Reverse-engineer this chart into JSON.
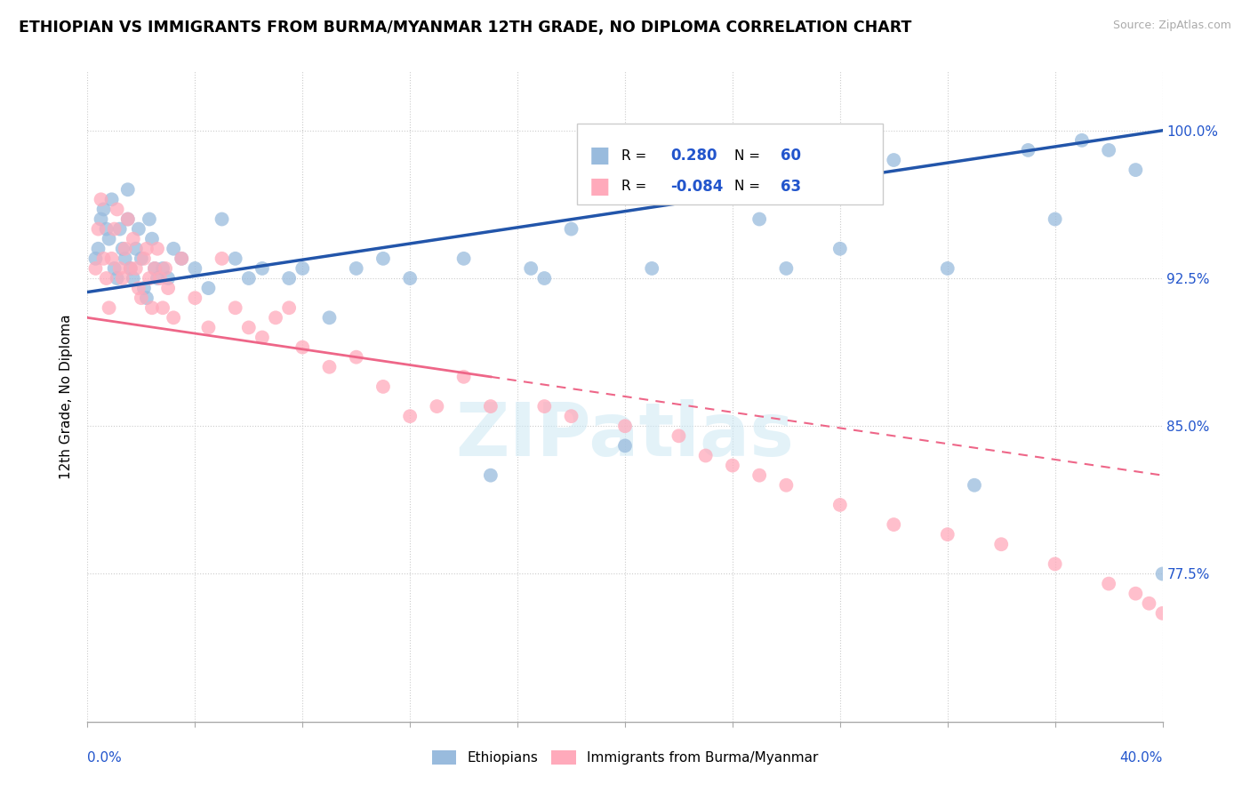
{
  "title": "ETHIOPIAN VS IMMIGRANTS FROM BURMA/MYANMAR 12TH GRADE, NO DIPLOMA CORRELATION CHART",
  "source": "Source: ZipAtlas.com",
  "ylabel": "12th Grade, No Diploma",
  "yticks": [
    77.5,
    85.0,
    92.5,
    100.0
  ],
  "ytick_labels": [
    "77.5%",
    "85.0%",
    "92.5%",
    "100.0%"
  ],
  "xmin": 0.0,
  "xmax": 40.0,
  "ymin": 70.0,
  "ymax": 103.0,
  "legend1_r": "0.280",
  "legend1_n": "60",
  "legend2_r": "-0.084",
  "legend2_n": "63",
  "blue_color": "#99BBDD",
  "pink_color": "#FFAABB",
  "blue_line_color": "#2255AA",
  "pink_line_color": "#EE6688",
  "legend_label1": "Ethiopians",
  "legend_label2": "Immigrants from Burma/Myanmar",
  "blue_line_x0": 0.0,
  "blue_line_y0": 91.8,
  "blue_line_x1": 40.0,
  "blue_line_y1": 100.0,
  "pink_line_x0": 0.0,
  "pink_line_y0": 90.5,
  "pink_line_x1": 40.0,
  "pink_line_y1": 82.5,
  "blue_scatter_x": [
    0.3,
    0.4,
    0.5,
    0.6,
    0.7,
    0.8,
    0.9,
    1.0,
    1.1,
    1.2,
    1.3,
    1.4,
    1.5,
    1.5,
    1.6,
    1.7,
    1.8,
    1.9,
    2.0,
    2.1,
    2.2,
    2.3,
    2.4,
    2.5,
    2.6,
    2.8,
    3.0,
    3.2,
    3.5,
    4.0,
    4.5,
    5.0,
    5.5,
    6.0,
    6.5,
    7.5,
    8.0,
    9.0,
    10.0,
    11.0,
    12.0,
    14.0,
    15.0,
    16.5,
    17.0,
    18.0,
    20.0,
    21.0,
    25.0,
    26.0,
    28.0,
    30.0,
    32.0,
    33.0,
    35.0,
    36.0,
    37.0,
    38.0,
    39.0,
    40.0
  ],
  "blue_scatter_y": [
    93.5,
    94.0,
    95.5,
    96.0,
    95.0,
    94.5,
    96.5,
    93.0,
    92.5,
    95.0,
    94.0,
    93.5,
    95.5,
    97.0,
    93.0,
    92.5,
    94.0,
    95.0,
    93.5,
    92.0,
    91.5,
    95.5,
    94.5,
    93.0,
    92.5,
    93.0,
    92.5,
    94.0,
    93.5,
    93.0,
    92.0,
    95.5,
    93.5,
    92.5,
    93.0,
    92.5,
    93.0,
    90.5,
    93.0,
    93.5,
    92.5,
    93.5,
    82.5,
    93.0,
    92.5,
    95.0,
    84.0,
    93.0,
    95.5,
    93.0,
    94.0,
    98.5,
    93.0,
    82.0,
    99.0,
    95.5,
    99.5,
    99.0,
    98.0,
    77.5
  ],
  "pink_scatter_x": [
    0.3,
    0.4,
    0.5,
    0.6,
    0.7,
    0.8,
    0.9,
    1.0,
    1.1,
    1.2,
    1.3,
    1.4,
    1.5,
    1.6,
    1.7,
    1.8,
    1.9,
    2.0,
    2.1,
    2.2,
    2.3,
    2.4,
    2.5,
    2.6,
    2.7,
    2.8,
    2.9,
    3.0,
    3.2,
    3.5,
    4.0,
    4.5,
    5.0,
    5.5,
    6.0,
    6.5,
    7.0,
    7.5,
    8.0,
    9.0,
    10.0,
    11.0,
    12.0,
    13.0,
    14.0,
    15.0,
    17.0,
    18.0,
    20.0,
    22.0,
    23.0,
    24.0,
    25.0,
    26.0,
    28.0,
    30.0,
    32.0,
    34.0,
    36.0,
    38.0,
    39.0,
    39.5,
    40.0
  ],
  "pink_scatter_y": [
    93.0,
    95.0,
    96.5,
    93.5,
    92.5,
    91.0,
    93.5,
    95.0,
    96.0,
    93.0,
    92.5,
    94.0,
    95.5,
    93.0,
    94.5,
    93.0,
    92.0,
    91.5,
    93.5,
    94.0,
    92.5,
    91.0,
    93.0,
    94.0,
    92.5,
    91.0,
    93.0,
    92.0,
    90.5,
    93.5,
    91.5,
    90.0,
    93.5,
    91.0,
    90.0,
    89.5,
    90.5,
    91.0,
    89.0,
    88.0,
    88.5,
    87.0,
    85.5,
    86.0,
    87.5,
    86.0,
    86.0,
    85.5,
    85.0,
    84.5,
    83.5,
    83.0,
    82.5,
    82.0,
    81.0,
    80.0,
    79.5,
    79.0,
    78.0,
    77.0,
    76.5,
    76.0,
    75.5
  ]
}
